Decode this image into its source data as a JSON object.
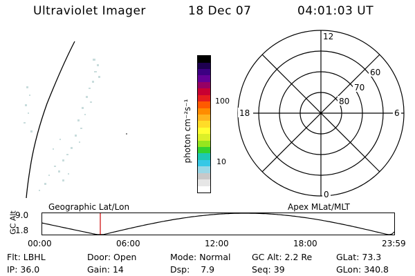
{
  "header": {
    "instrument": "Ultraviolet Imager",
    "date": "18 Dec 07",
    "time": "04:01:03 UT"
  },
  "colorbar": {
    "unit_label": "photon cm⁻²s⁻¹",
    "tick_100": "100",
    "tick_10": "10",
    "colors": [
      "#ffffff",
      "#e6e6e6",
      "#c8c8c8",
      "#9ad7e6",
      "#36c8e6",
      "#1ec8b4",
      "#32d232",
      "#96e61e",
      "#dcf028",
      "#ffff32",
      "#ffdc28",
      "#ffb41e",
      "#ff8c00",
      "#ff5a00",
      "#e61e1e",
      "#c80032",
      "#960064",
      "#640096",
      "#3c0082",
      "#1e0050",
      "#000000"
    ]
  },
  "polar": {
    "mlt_top": "12",
    "mlt_left": "18",
    "mlt_right": "6",
    "mlt_bottom": "0",
    "lat_60": "60",
    "lat_70": "70",
    "lat_80": "80"
  },
  "timeline": {
    "ylabel": "GC Alt",
    "y_top": "9.0",
    "y_bottom": "1.8",
    "left_title": "Geographic Lat/Lon",
    "right_title": "Apex MLat/MLT",
    "xticks": [
      "00:00",
      "06:00",
      "12:00",
      "18:00",
      "23:59"
    ],
    "marker_color": "#cc0000"
  },
  "info": {
    "flt_label": "Flt:",
    "flt_value": "LBHL",
    "ip_label": "IP:",
    "ip_value": "36.0",
    "door_label": "Door:",
    "door_value": "Open",
    "gain_label": "Gain:",
    "gain_value": "14",
    "mode_label": "Mode:",
    "mode_value": "Normal",
    "dsp_label": "Dsp:",
    "dsp_value": "7.9",
    "gcalt_label": "GC Alt:",
    "gcalt_value": "2.2 Re",
    "seq_label": "Seq:",
    "seq_value": "39",
    "glat_label": "GLat:",
    "glat_value": "73.3",
    "glon_label": "GLon:",
    "glon_value": "340.8"
  }
}
